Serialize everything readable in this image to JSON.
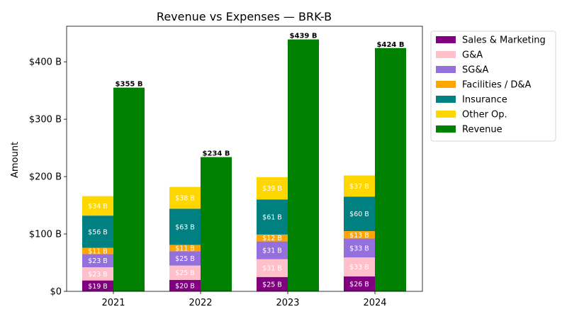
{
  "chart_data": {
    "type": "bar",
    "title": "Revenue vs Expenses — BRK-B",
    "xlabel": "",
    "ylabel": "Amount",
    "ylim": [
      0,
      462
    ],
    "yticks": [
      0,
      100,
      200,
      300,
      400
    ],
    "ytick_labels": [
      "$0",
      "$100 B",
      "$200 B",
      "$300 B",
      "$400 B"
    ],
    "categories": [
      "2021",
      "2022",
      "2023",
      "2024"
    ],
    "expense_series": [
      {
        "name": "Sales & Marketing",
        "color": "#800080",
        "label_color": "#ffffff",
        "values": [
          19,
          20,
          25,
          26
        ],
        "labels": [
          "$19 B",
          "$20 B",
          "$25 B",
          "$26 B"
        ]
      },
      {
        "name": "G&A",
        "color": "#ffc0cb",
        "label_color": "#ffffff",
        "values": [
          23,
          25,
          31,
          33
        ],
        "labels": [
          "$23 B",
          "$25 B",
          "$31 B",
          "$33 B"
        ]
      },
      {
        "name": "SG&A",
        "color": "#9370db",
        "label_color": "#ffffff",
        "values": [
          23,
          25,
          31,
          33
        ],
        "labels": [
          "$23 B",
          "$25 B",
          "$31 B",
          "$33 B"
        ]
      },
      {
        "name": "Facilities / D&A",
        "color": "#ffa500",
        "label_color": "#ffffff",
        "values": [
          11,
          11,
          12,
          13
        ],
        "labels": [
          "$11 B",
          "$11 B",
          "$12 B",
          "$13 B"
        ]
      },
      {
        "name": "Insurance",
        "color": "#008080",
        "label_color": "#ffffff",
        "values": [
          56,
          63,
          61,
          60
        ],
        "labels": [
          "$56 B",
          "$63 B",
          "$61 B",
          "$60 B"
        ]
      },
      {
        "name": "Other Op.",
        "color": "#ffd700",
        "label_color": "#ffffff",
        "values": [
          34,
          38,
          39,
          37
        ],
        "labels": [
          "$34 B",
          "$38 B",
          "$39 B",
          "$37 B"
        ]
      }
    ],
    "revenue_series": {
      "name": "Revenue",
      "color": "#008000",
      "values": [
        355,
        234,
        439,
        424
      ],
      "labels": [
        "$355 B",
        "$234 B",
        "$439 B",
        "$424 B"
      ]
    },
    "legend": {
      "placement": "outside-right",
      "entries": [
        "Sales & Marketing",
        "G&A",
        "SG&A",
        "Facilities / D&A",
        "Insurance",
        "Other Op.",
        "Revenue"
      ]
    },
    "grid": false
  }
}
